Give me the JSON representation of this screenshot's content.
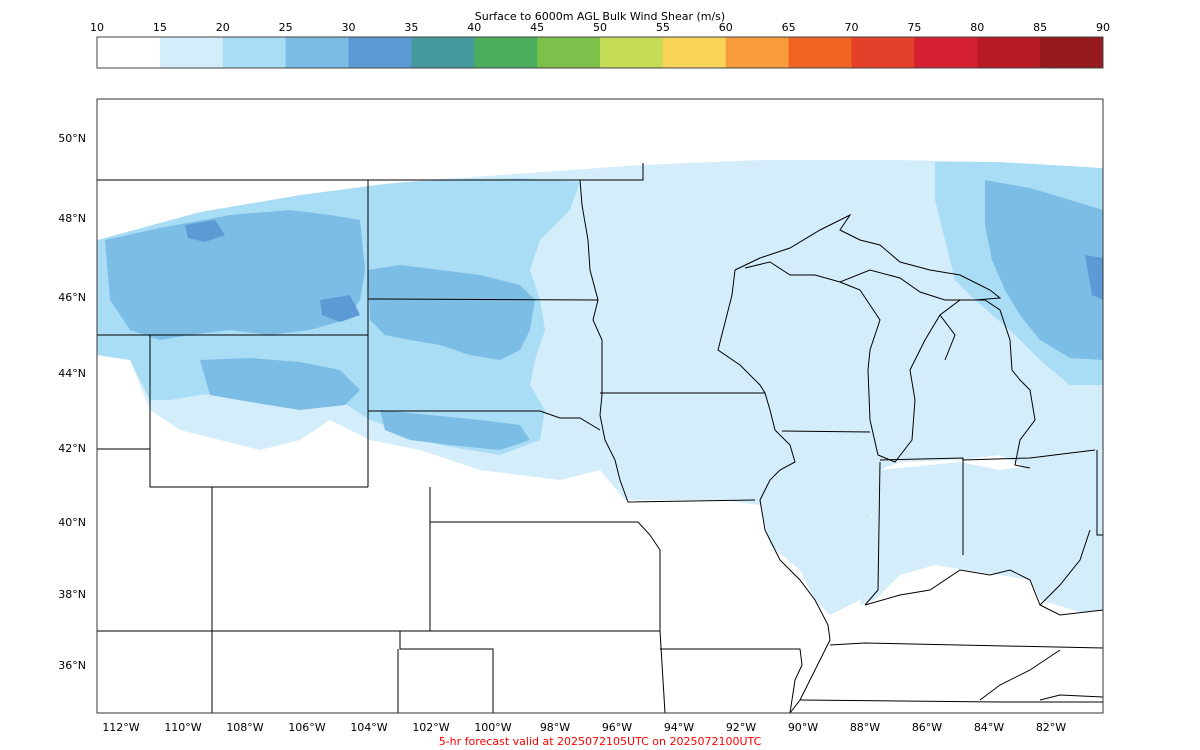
{
  "colorbar": {
    "title": "Surface to 6000m AGL Bulk Wind Shear (m/s)",
    "ticks": [
      "10",
      "15",
      "20",
      "25",
      "30",
      "35",
      "40",
      "45",
      "50",
      "55",
      "60",
      "65",
      "70",
      "75",
      "80",
      "85",
      "90"
    ],
    "colors": [
      "#ffffff",
      "#d4edfb",
      "#a9dcf5",
      "#7cbde6",
      "#5b9ad4",
      "#45999f",
      "#4aae5c",
      "#7dc14a",
      "#c5dc56",
      "#f8d458",
      "#f79b3b",
      "#f26423",
      "#e5402a",
      "#d42030",
      "#b81b24",
      "#951a1e"
    ]
  },
  "map": {
    "lat_labels": [
      "50°N",
      "48°N",
      "46°N",
      "44°N",
      "42°N",
      "40°N",
      "38°N",
      "36°N"
    ],
    "lon_labels": [
      "112°W",
      "110°W",
      "108°W",
      "106°W",
      "104°W",
      "102°W",
      "100°W",
      "98°W",
      "96°W",
      "94°W",
      "92°W",
      "90°W",
      "88°W",
      "86°W",
      "84°W",
      "82°W"
    ],
    "background": "#ffffff",
    "border_color": "#000000"
  },
  "footer": {
    "caption": "5-hr forecast valid at 2025072105UTC on 2025072100UTC",
    "caption_color": "#ff0000"
  }
}
